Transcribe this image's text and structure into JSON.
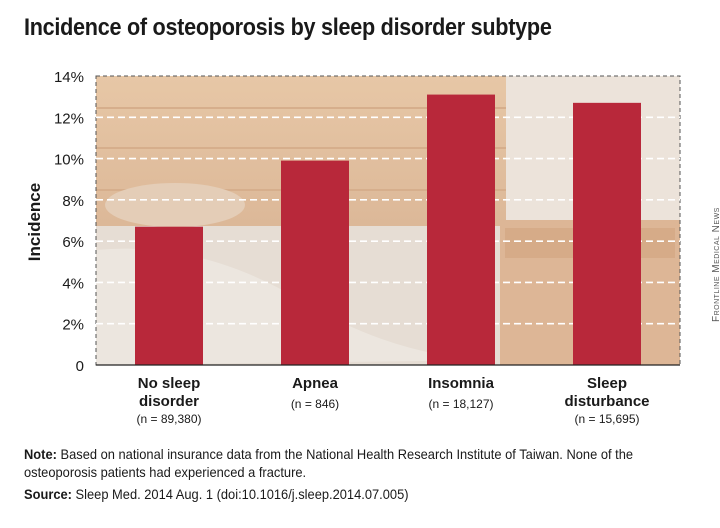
{
  "title": "Incidence of osteoporosis by sleep disorder subtype",
  "note_label": "Note:",
  "note_text": "Based on national insurance data from the National Health Research Institute of Taiwan. None of the osteoporosis patients had experienced a fracture.",
  "source_label": "Source:",
  "source_text": "Sleep Med. 2014 Aug. 1 (doi:10.1016/j.sleep.2014.07.005)",
  "credit": "Frontline Medical News",
  "colors": {
    "bar": "#b8283a",
    "text": "#1a1a1a",
    "grid": "#ffffff"
  },
  "chart_data": {
    "type": "bar",
    "title": "Incidence of osteoporosis by sleep disorder subtype",
    "ylabel": "Incidence",
    "xlabel": "",
    "ylim": [
      0,
      14
    ],
    "yticks": [
      0,
      2,
      4,
      6,
      8,
      10,
      12,
      14
    ],
    "ytick_labels": [
      "0",
      "2%",
      "4%",
      "6%",
      "8%",
      "10%",
      "12%",
      "14%"
    ],
    "grid": true,
    "categories": [
      {
        "lines": [
          "No sleep",
          "disorder"
        ],
        "n": "(n = 89,380)"
      },
      {
        "lines": [
          "Apnea"
        ],
        "n": "(n = 846)"
      },
      {
        "lines": [
          "Insomnia"
        ],
        "n": "(n = 18,127)"
      },
      {
        "lines": [
          "Sleep",
          "disturbance"
        ],
        "n": "(n = 15,695)"
      }
    ],
    "values": [
      6.7,
      9.9,
      13.1,
      12.7
    ]
  }
}
